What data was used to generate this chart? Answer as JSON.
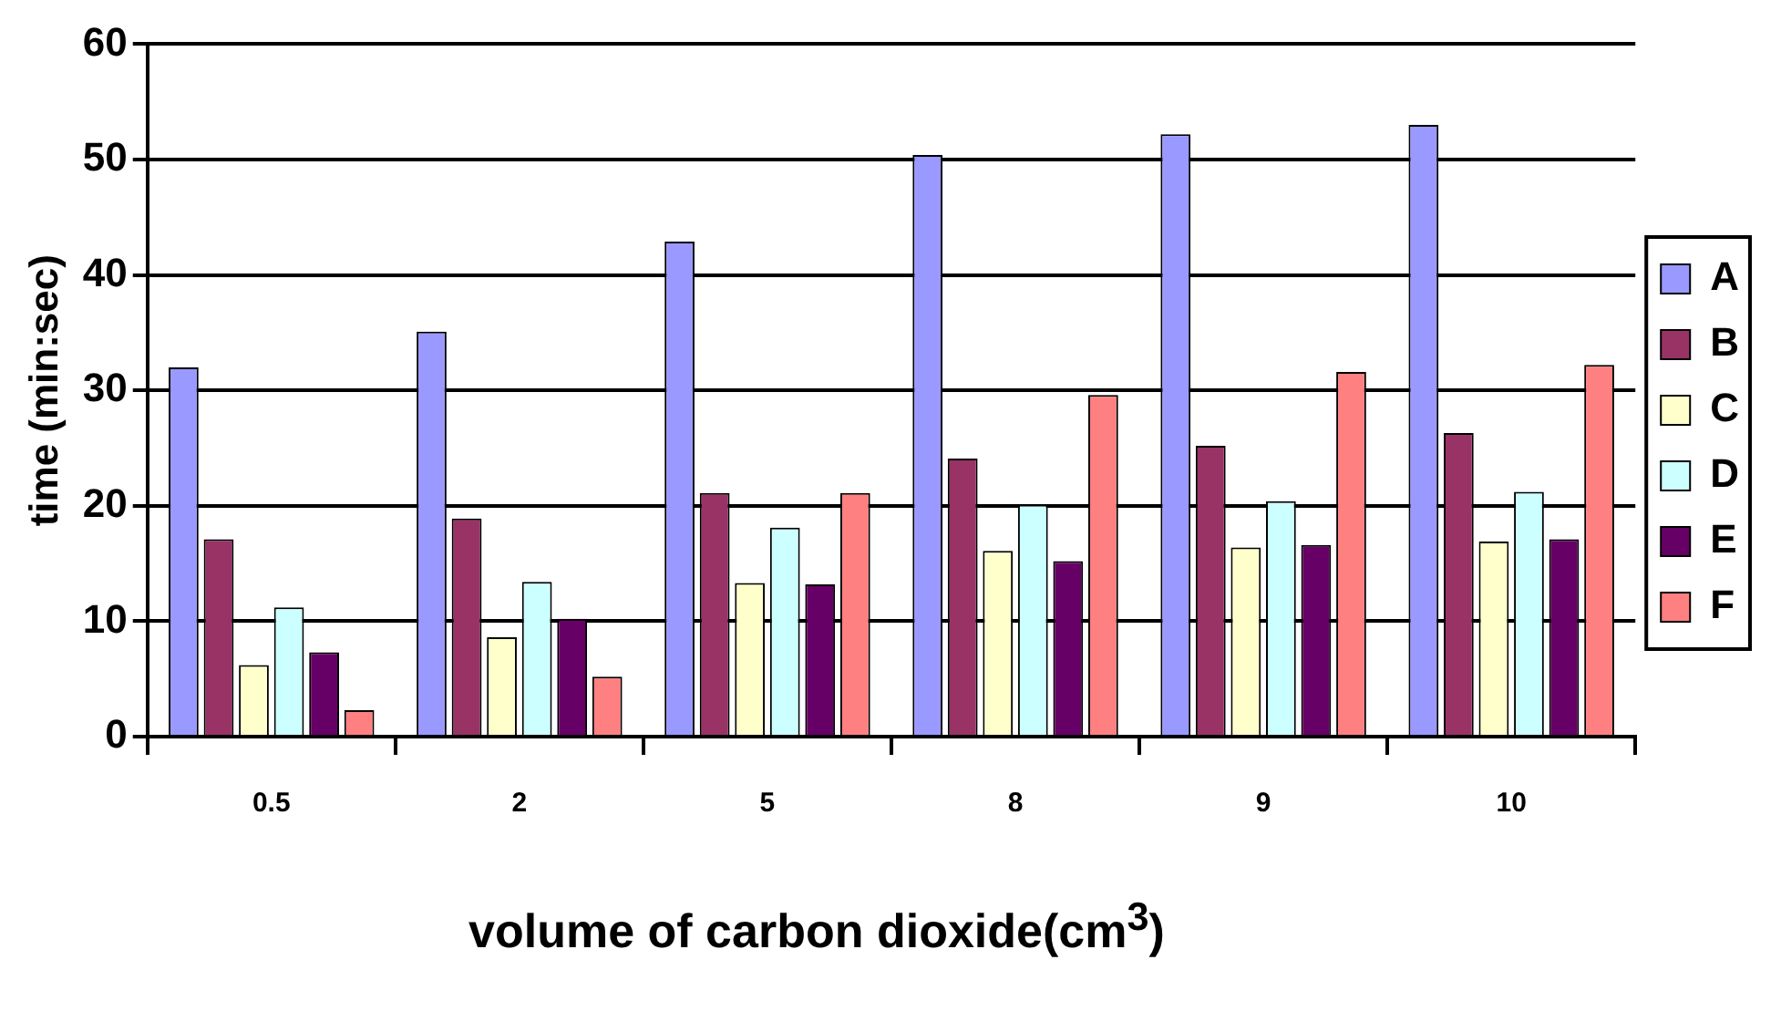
{
  "chart_data": {
    "type": "bar",
    "xlabel": "volume of carbon dioxide(cm$^{3}$)",
    "ylabel": "time (min:sec)",
    "categories": [
      "0.5",
      "2",
      "5",
      "8",
      "9",
      "10"
    ],
    "series": [
      {
        "name": "A",
        "color": "#9999ff",
        "values": [
          32.0,
          35.1,
          42.9,
          50.4,
          52.2,
          53.0
        ]
      },
      {
        "name": "B",
        "color": "#993366",
        "values": [
          17.1,
          18.9,
          21.1,
          24.1,
          25.2,
          26.3
        ]
      },
      {
        "name": "C",
        "color": "#ffffcc",
        "values": [
          6.2,
          8.6,
          13.3,
          16.1,
          16.4,
          16.9
        ]
      },
      {
        "name": "D",
        "color": "#ccffff",
        "values": [
          11.2,
          13.4,
          18.1,
          20.1,
          20.4,
          21.2
        ]
      },
      {
        "name": "E",
        "color": "#660066",
        "values": [
          7.3,
          10.2,
          13.2,
          15.2,
          16.6,
          17.1
        ]
      },
      {
        "name": "F",
        "color": "#ff8080",
        "values": [
          2.3,
          5.2,
          21.1,
          29.6,
          31.6,
          32.2
        ]
      }
    ],
    "ylim": [
      0,
      60
    ],
    "yticks": [
      0,
      10,
      20,
      30,
      40,
      50,
      60
    ],
    "grid": "y",
    "legend": "right"
  }
}
